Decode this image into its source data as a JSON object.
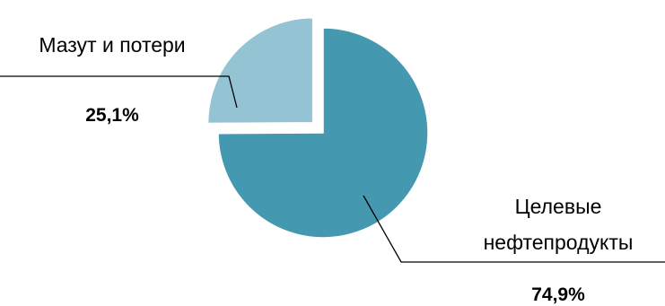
{
  "chart_data": {
    "type": "pie",
    "title": "",
    "slices": [
      {
        "label_lines": [
          "Целевые",
          "нефтепродукты"
        ],
        "value": 74.9,
        "value_label": "74,9%",
        "color": "#4499b0"
      },
      {
        "label_lines": [
          "Мазут и потери"
        ],
        "value": 25.1,
        "value_label": "25,1%",
        "color": "#94c4d4",
        "exploded": true
      }
    ],
    "legend": "none",
    "start_angle": "12 o'clock, clockwise"
  }
}
